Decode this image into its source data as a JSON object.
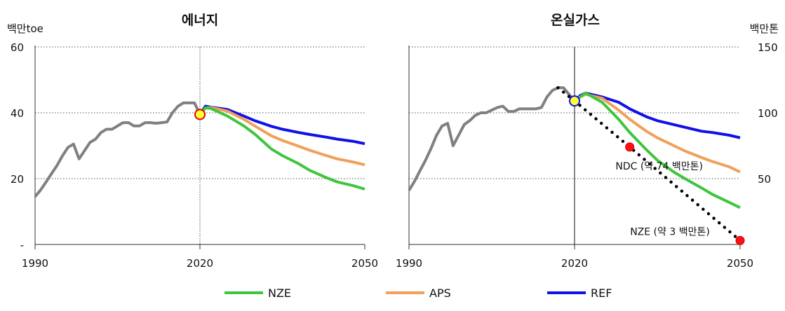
{
  "colors": {
    "NZE": "#3ec63e",
    "APS": "#f0a05a",
    "REF": "#1010e8",
    "history": "#808080",
    "marker_fill": "#ffff33",
    "target_fill": "#ff1111"
  },
  "legend": [
    {
      "label": "NZE",
      "color": "#3ec63e"
    },
    {
      "label": "APS",
      "color": "#f0a05a"
    },
    {
      "label": "REF",
      "color": "#1010e8"
    }
  ],
  "chart_data": [
    {
      "type": "line",
      "title": "에너지",
      "ylabel": "백만toe",
      "xlim": [
        1990,
        2050
      ],
      "ylim": [
        0,
        60
      ],
      "x_ticks": [
        "1990",
        "2020",
        "2050"
      ],
      "y_ticks": [
        "-",
        "20",
        "40",
        "60"
      ],
      "grid": "horizontal dotted",
      "reference_year": 2020,
      "history": {
        "x": [
          1990,
          1991,
          1992,
          1993,
          1994,
          1995,
          1996,
          1997,
          1998,
          1999,
          2000,
          2001,
          2002,
          2003,
          2004,
          2005,
          2006,
          2007,
          2008,
          2009,
          2010,
          2011,
          2012,
          2013,
          2014,
          2015,
          2016,
          2017,
          2018,
          2019,
          2020
        ],
        "y": [
          14.5,
          16.5,
          19,
          21.5,
          24,
          27,
          29.5,
          30.5,
          26,
          28.5,
          31,
          32,
          34,
          35,
          35,
          36,
          37,
          37,
          36,
          36,
          37,
          37,
          36.8,
          37,
          37.2,
          40,
          42,
          43,
          43,
          43,
          39.5
        ]
      },
      "series": [
        {
          "name": "NZE",
          "x": [
            2020,
            2021,
            2022,
            2025,
            2028,
            2030,
            2033,
            2035,
            2038,
            2040,
            2043,
            2045,
            2048,
            2050
          ],
          "y": [
            39.5,
            41.5,
            41.3,
            39,
            36,
            33.5,
            29,
            27,
            24.5,
            22.5,
            20.3,
            19,
            17.8,
            16.8
          ]
        },
        {
          "name": "APS",
          "x": [
            2020,
            2021,
            2022,
            2025,
            2028,
            2030,
            2033,
            2035,
            2038,
            2040,
            2043,
            2045,
            2048,
            2050
          ],
          "y": [
            39.5,
            41.5,
            41.6,
            40.5,
            38,
            36,
            33,
            31.6,
            29.8,
            28.6,
            27,
            26,
            25,
            24.2
          ]
        },
        {
          "name": "REF",
          "x": [
            2020,
            2021,
            2022,
            2025,
            2028,
            2030,
            2033,
            2035,
            2038,
            2040,
            2043,
            2045,
            2048,
            2050
          ],
          "y": [
            39.5,
            42,
            41.7,
            41,
            39,
            37.6,
            35.9,
            35,
            34,
            33.4,
            32.6,
            32,
            31.3,
            30.6
          ]
        }
      ],
      "marker": {
        "x": 2020,
        "y": 39.5
      }
    },
    {
      "type": "line",
      "title": "온실가스",
      "ylabel": "백만톤",
      "xlim": [
        1990,
        2050
      ],
      "ylim": [
        0,
        150
      ],
      "x_ticks": [
        "1990",
        "2020",
        "2050"
      ],
      "y_ticks": [
        "50",
        "100",
        "150"
      ],
      "grid": "horizontal dotted",
      "reference_year": 2020,
      "history": {
        "x": [
          1990,
          1991,
          1992,
          1993,
          1994,
          1995,
          1996,
          1997,
          1998,
          1999,
          2000,
          2001,
          2002,
          2003,
          2004,
          2005,
          2006,
          2007,
          2008,
          2009,
          2010,
          2011,
          2012,
          2013,
          2014,
          2015,
          2016,
          2017,
          2018,
          2019,
          2020
        ],
        "y": [
          41,
          48,
          56,
          64,
          73,
          83,
          90,
          92,
          75,
          83,
          91,
          94,
          98,
          100,
          100,
          102,
          104,
          105,
          101,
          101,
          103,
          103,
          103,
          103,
          104,
          112,
          117,
          119,
          119,
          114,
          109
        ]
      },
      "series": [
        {
          "name": "NZE",
          "x": [
            2020,
            2021,
            2022,
            2025,
            2028,
            2030,
            2033,
            2035,
            2038,
            2040,
            2043,
            2045,
            2048,
            2050
          ],
          "y": [
            109,
            112,
            115,
            108,
            95,
            85,
            72,
            64,
            55,
            50,
            43,
            38,
            32,
            28
          ]
        },
        {
          "name": "APS",
          "x": [
            2020,
            2021,
            2022,
            2025,
            2028,
            2030,
            2033,
            2035,
            2038,
            2040,
            2043,
            2045,
            2048,
            2050
          ],
          "y": [
            109,
            112,
            114,
            111,
            102,
            95,
            86,
            81,
            75,
            71,
            66,
            63,
            59,
            55
          ]
        },
        {
          "name": "REF",
          "x": [
            2020,
            2021,
            2022,
            2025,
            2028,
            2030,
            2033,
            2035,
            2038,
            2040,
            2043,
            2045,
            2048,
            2050
          ],
          "y": [
            109,
            113,
            115,
            112,
            108,
            103,
            97,
            94,
            91,
            89,
            86,
            85,
            83,
            81
          ]
        }
      ],
      "marker": {
        "x": 2020,
        "y": 109
      },
      "pathway": {
        "x": [
          2017,
          2020,
          2030,
          2050
        ],
        "y": [
          119,
          109,
          74,
          3
        ]
      },
      "targets": [
        {
          "x": 2030,
          "y": 74,
          "label": "NDC (약 74 백만톤)"
        },
        {
          "x": 2050,
          "y": 3,
          "label": "NZE (약 3 백만톤)"
        }
      ]
    }
  ]
}
